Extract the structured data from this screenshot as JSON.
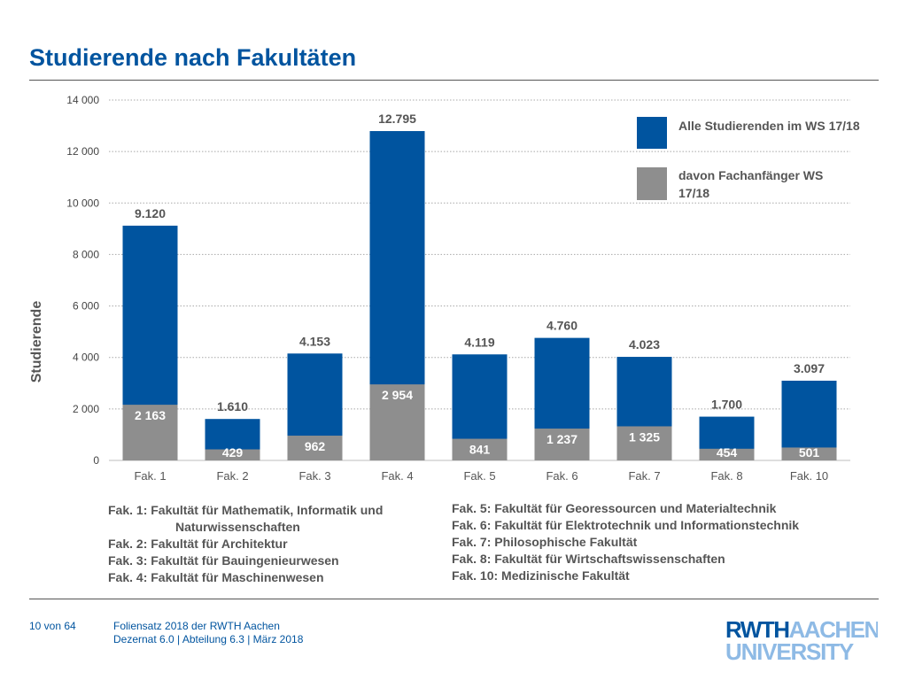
{
  "title": "Studierende nach Fakultäten",
  "legend": {
    "total": "Alle Studierenden im WS 17/18",
    "beginners": "davon Fachanfänger WS 17/18"
  },
  "colors": {
    "total": "#00549f",
    "beginners": "#8e8e8e",
    "accent": "#00549f"
  },
  "faculties_left": [
    "Fak.   1: Fakultät für Mathematik, Informatik und",
    "Naturwissenschaften",
    "Fak.   2: Fakultät für Architektur",
    "Fak.   3: Fakultät für Bauingenieurwesen",
    "Fak.   4: Fakultät für Maschinenwesen"
  ],
  "faculties_right": [
    "Fak.   5: Fakultät für Georessourcen und Materialtechnik",
    "Fak.   6: Fakultät für Elektrotechnik und Informationstechnik",
    "Fak.   7: Philosophische Fakultät",
    "Fak.   8: Fakultät für Wirtschaftswissenschaften",
    "Fak. 10: Medizinische Fakultät"
  ],
  "footer": {
    "page": "10 von 64",
    "line1": "Foliensatz 2018 der RWTH Aachen",
    "line2": "Dezernat 6.0 | Abteilung 6.3 | März 2018"
  },
  "logo": {
    "line1_a": "RWTH",
    "line1_b": "AACHEN",
    "line2": "UNIVERSITY"
  },
  "chart_data": {
    "type": "bar",
    "ylabel": "Studierende",
    "ylim": [
      0,
      14000
    ],
    "yticks": [
      0,
      2000,
      4000,
      6000,
      8000,
      10000,
      12000,
      14000
    ],
    "ytick_labels": [
      "0",
      "2 000",
      "4 000",
      "6 000",
      "8 000",
      "10 000",
      "12 000",
      "14 000"
    ],
    "grid": true,
    "legend_position": "top-right",
    "categories": [
      "Fak. 1",
      "Fak. 2",
      "Fak. 3",
      "Fak. 4",
      "Fak. 5",
      "Fak. 6",
      "Fak. 7",
      "Fak. 8",
      "Fak. 10"
    ],
    "series": [
      {
        "name": "Alle Studierenden im WS 17/18",
        "values": [
          9120,
          1610,
          4153,
          12795,
          4119,
          4760,
          4023,
          1700,
          3097
        ],
        "labels": [
          "9.120",
          "1.610",
          "4.153",
          "12.795",
          "4.119",
          "4.760",
          "4.023",
          "1.700",
          "3.097"
        ]
      },
      {
        "name": "davon Fachanfänger WS 17/18",
        "values": [
          2163,
          429,
          962,
          2954,
          841,
          1237,
          1325,
          454,
          501
        ],
        "labels": [
          "2 163",
          "429",
          "962",
          "2 954",
          "841",
          "1 237",
          "1 325",
          "454",
          "501"
        ]
      }
    ]
  }
}
